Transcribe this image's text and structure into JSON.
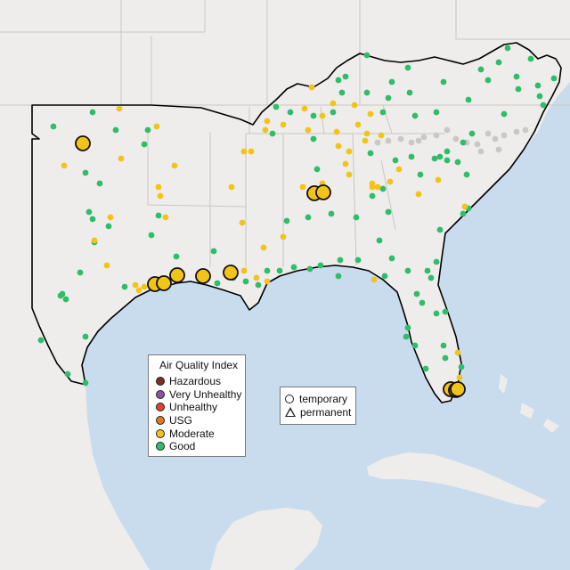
{
  "colors": {
    "ocean": "#c9dcee",
    "land": "#eeedeb",
    "state_border": "#c9c6c2",
    "region_outline": "#000000",
    "station_grey": "#c8c8c8"
  },
  "aqi_legend": {
    "title": "Air Quality Index",
    "items": [
      {
        "label": "Hazardous",
        "color": "#7e2d25"
      },
      {
        "label": "Very Unhealthy",
        "color": "#8b53a3"
      },
      {
        "label": "Unhealthy",
        "color": "#e4402e"
      },
      {
        "label": "USG",
        "color": "#e07b1c"
      },
      {
        "label": "Moderate",
        "color": "#f2c318"
      },
      {
        "label": "Good",
        "color": "#2ebd69"
      }
    ]
  },
  "monitor_type_legend": {
    "items": [
      {
        "label": "temporary",
        "shape": "circle"
      },
      {
        "label": "permanent",
        "shape": "triangle"
      }
    ]
  },
  "large_monitors": [
    {
      "category": "Moderate",
      "type": "temporary"
    },
    {
      "category": "Moderate",
      "type": "temporary"
    },
    {
      "category": "Moderate",
      "type": "temporary"
    },
    {
      "category": "Moderate",
      "type": "temporary"
    },
    {
      "category": "Moderate",
      "type": "temporary"
    },
    {
      "category": "Moderate",
      "type": "temporary"
    },
    {
      "category": "Moderate",
      "type": "temporary"
    },
    {
      "category": "Moderate",
      "type": "temporary"
    },
    {
      "category": "Moderate",
      "type": "temporary"
    },
    {
      "category": "Moderate",
      "type": "temporary"
    },
    {
      "category": "Moderate",
      "type": "temporary"
    }
  ]
}
